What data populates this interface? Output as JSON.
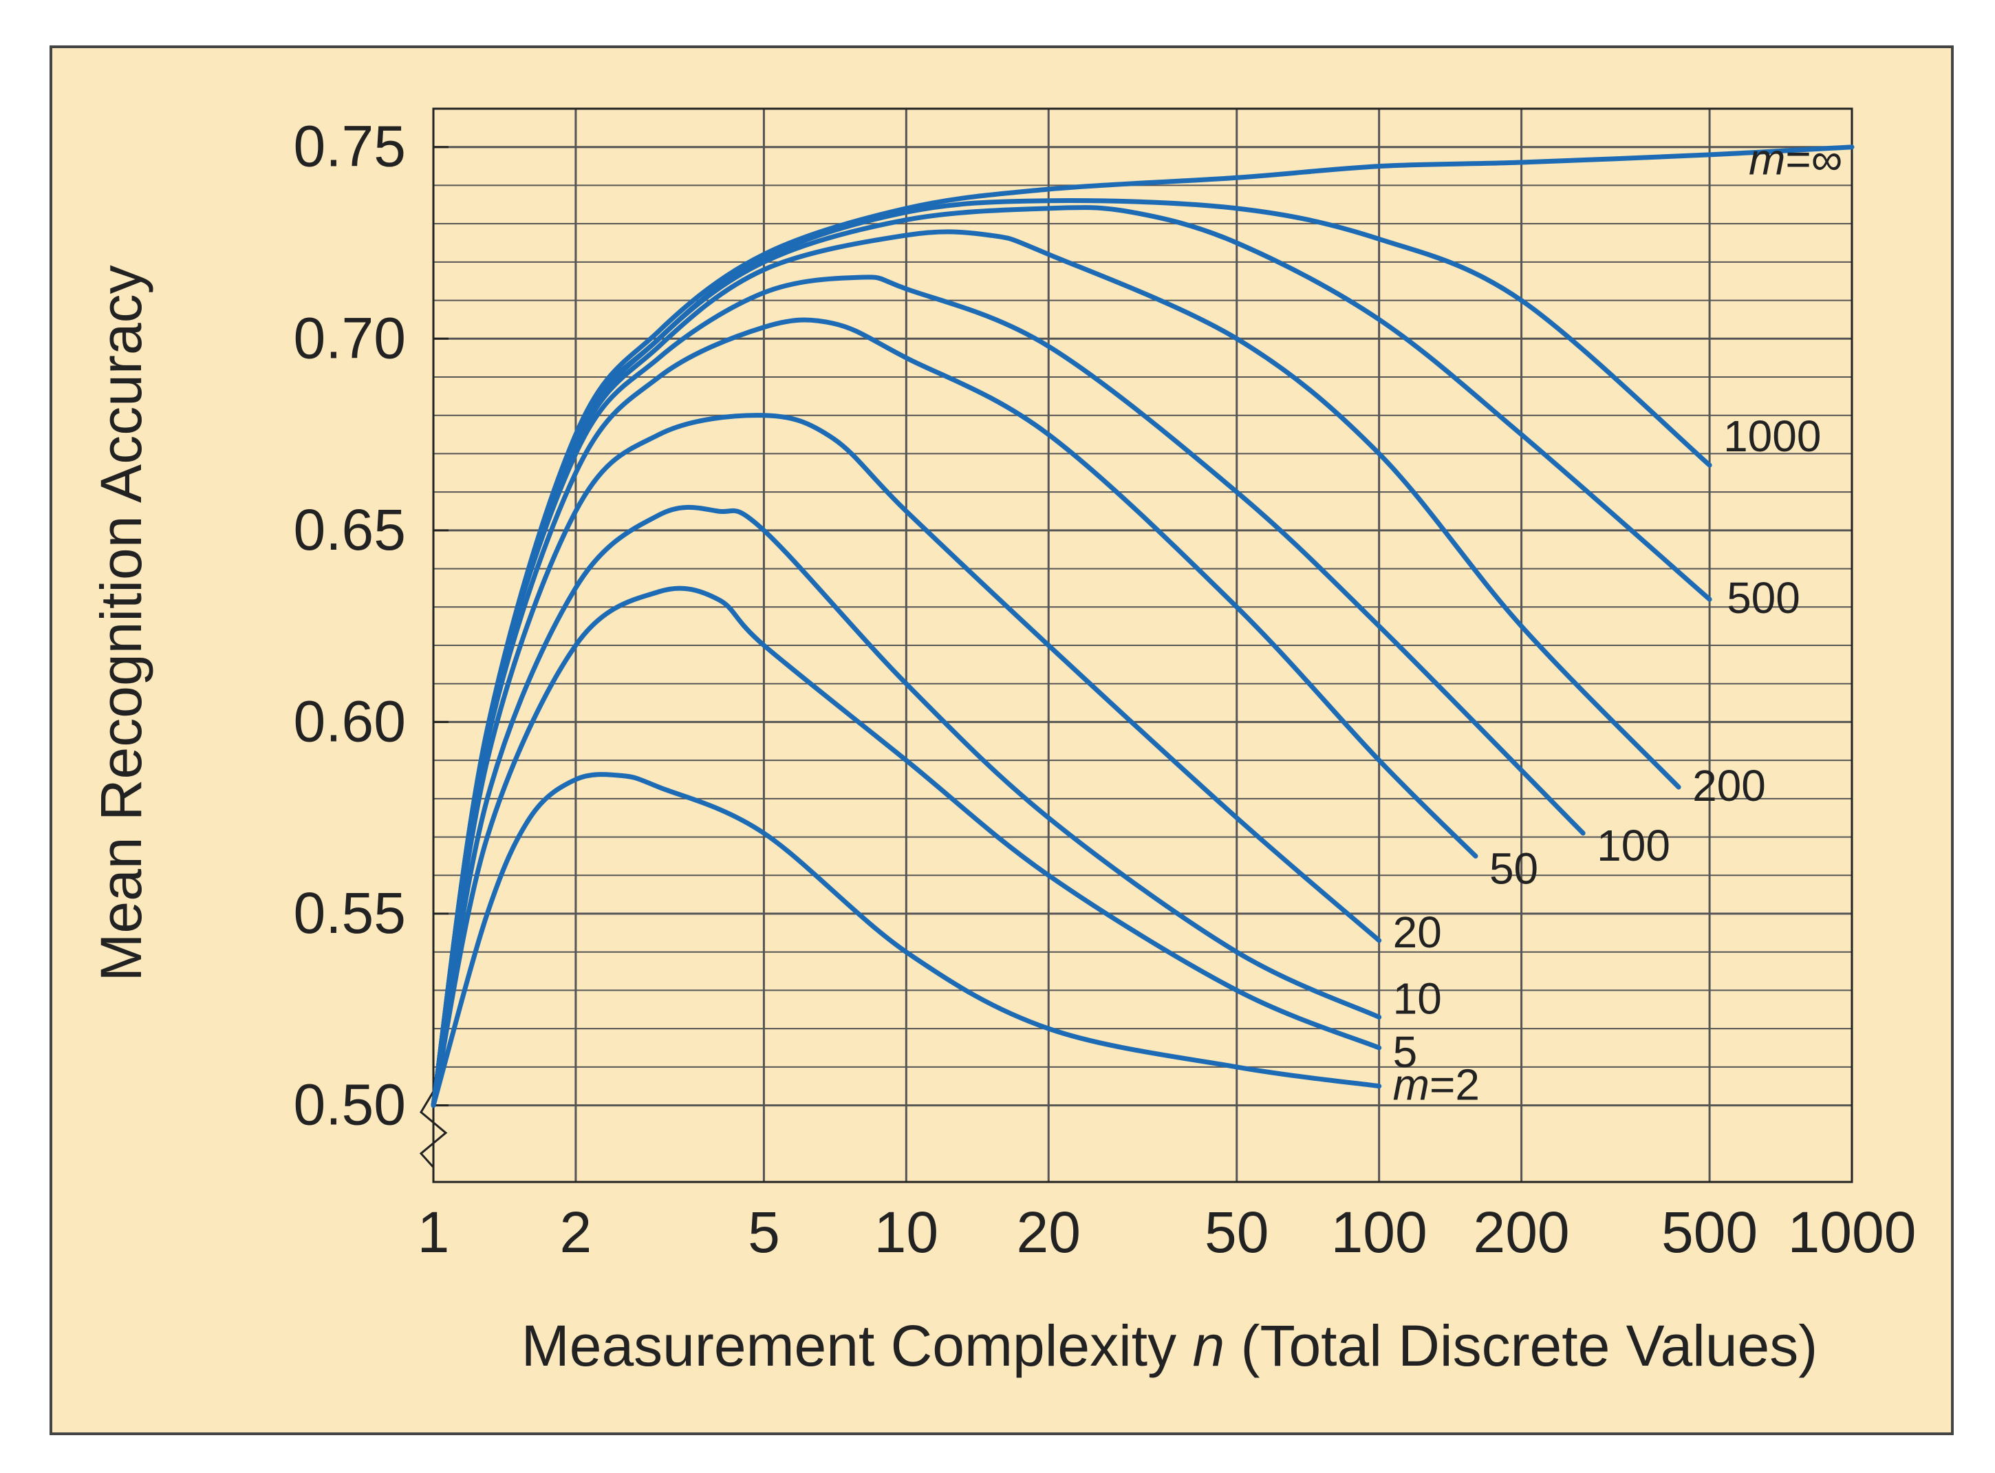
{
  "chart_data": {
    "type": "line",
    "title": "",
    "xlabel_parts": [
      "Measurement Complexity ",
      "n",
      " (Total Discrete Values)"
    ],
    "ylabel": "Mean Recognition Accuracy",
    "xscale": "log",
    "xlim": [
      1,
      1000
    ],
    "ylim": [
      0.48,
      0.76
    ],
    "x_ticks": [
      1,
      2,
      5,
      10,
      20,
      50,
      100,
      200,
      500,
      1000
    ],
    "x_tick_labels": [
      "1",
      "2",
      "5",
      "10",
      "20",
      "50",
      "100",
      "200",
      "500",
      "1000"
    ],
    "y_ticks": [
      0.5,
      0.55,
      0.6,
      0.65,
      0.7,
      0.75
    ],
    "y_tick_labels": [
      "0.50",
      "0.55",
      "0.60",
      "0.65",
      "0.70",
      "0.75"
    ],
    "grid": true,
    "colors": {
      "line": "#1d6bb5",
      "background": "#fbe8bd",
      "grid": "#555555",
      "frame": "#444444"
    },
    "series": [
      {
        "name": "m=2",
        "label_prefix": "m",
        "label_value": "=2",
        "x": [
          1,
          1.3,
          1.6,
          2,
          2.5,
          3,
          5,
          10,
          20,
          50,
          100
        ],
        "y": [
          0.5,
          0.55,
          0.575,
          0.585,
          0.586,
          0.583,
          0.571,
          0.54,
          0.52,
          0.51,
          0.505
        ]
      },
      {
        "name": "5",
        "label_prefix": "",
        "label_value": "5",
        "x": [
          1,
          1.3,
          2,
          3,
          4,
          5,
          10,
          20,
          50,
          100
        ],
        "y": [
          0.5,
          0.57,
          0.62,
          0.634,
          0.632,
          0.62,
          0.59,
          0.56,
          0.53,
          0.515
        ]
      },
      {
        "name": "10",
        "label_prefix": "",
        "label_value": "10",
        "x": [
          1,
          1.3,
          2,
          3,
          4,
          5,
          10,
          20,
          50,
          100
        ],
        "y": [
          0.5,
          0.58,
          0.635,
          0.654,
          0.655,
          0.65,
          0.61,
          0.575,
          0.54,
          0.523
        ]
      },
      {
        "name": "20",
        "label_prefix": "",
        "label_value": "20",
        "x": [
          1,
          1.3,
          2,
          3,
          5,
          7,
          10,
          20,
          50,
          100
        ],
        "y": [
          0.5,
          0.59,
          0.655,
          0.675,
          0.68,
          0.674,
          0.655,
          0.62,
          0.575,
          0.543
        ]
      },
      {
        "name": "50",
        "label_prefix": "",
        "label_value": "50",
        "x": [
          1,
          1.3,
          2,
          3,
          5,
          7,
          10,
          20,
          50,
          100,
          160
        ],
        "y": [
          0.5,
          0.595,
          0.665,
          0.69,
          0.703,
          0.704,
          0.695,
          0.675,
          0.63,
          0.59,
          0.565
        ]
      },
      {
        "name": "100",
        "label_prefix": "",
        "label_value": "100",
        "x": [
          1,
          1.3,
          2,
          3,
          5,
          8,
          10,
          20,
          50,
          100,
          270
        ],
        "y": [
          0.5,
          0.598,
          0.67,
          0.695,
          0.712,
          0.716,
          0.713,
          0.698,
          0.66,
          0.625,
          0.571
        ]
      },
      {
        "name": "200",
        "label_prefix": "",
        "label_value": "200",
        "x": [
          1,
          1.3,
          2,
          3,
          5,
          10,
          15,
          20,
          50,
          100,
          200,
          430
        ],
        "y": [
          0.5,
          0.598,
          0.672,
          0.698,
          0.718,
          0.727,
          0.727,
          0.722,
          0.7,
          0.67,
          0.625,
          0.583
        ]
      },
      {
        "name": "500",
        "label_prefix": "",
        "label_value": "500",
        "x": [
          1,
          1.3,
          2,
          3,
          5,
          10,
          20,
          30,
          50,
          100,
          200,
          500
        ],
        "y": [
          0.5,
          0.598,
          0.673,
          0.7,
          0.72,
          0.731,
          0.734,
          0.733,
          0.725,
          0.705,
          0.675,
          0.632
        ]
      },
      {
        "name": "1000",
        "label_prefix": "",
        "label_value": "1000",
        "x": [
          1,
          1.3,
          2,
          3,
          5,
          10,
          20,
          50,
          100,
          200,
          500
        ],
        "y": [
          0.5,
          0.598,
          0.674,
          0.7,
          0.721,
          0.733,
          0.736,
          0.734,
          0.726,
          0.71,
          0.667
        ]
      },
      {
        "name": "m=∞",
        "label_prefix": "m",
        "label_value": "=∞",
        "x": [
          1,
          1.3,
          2,
          3,
          5,
          10,
          20,
          50,
          100,
          200,
          500,
          1000
        ],
        "y": [
          0.5,
          0.598,
          0.675,
          0.702,
          0.722,
          0.734,
          0.739,
          0.742,
          0.745,
          0.746,
          0.748,
          0.75
        ]
      }
    ]
  }
}
